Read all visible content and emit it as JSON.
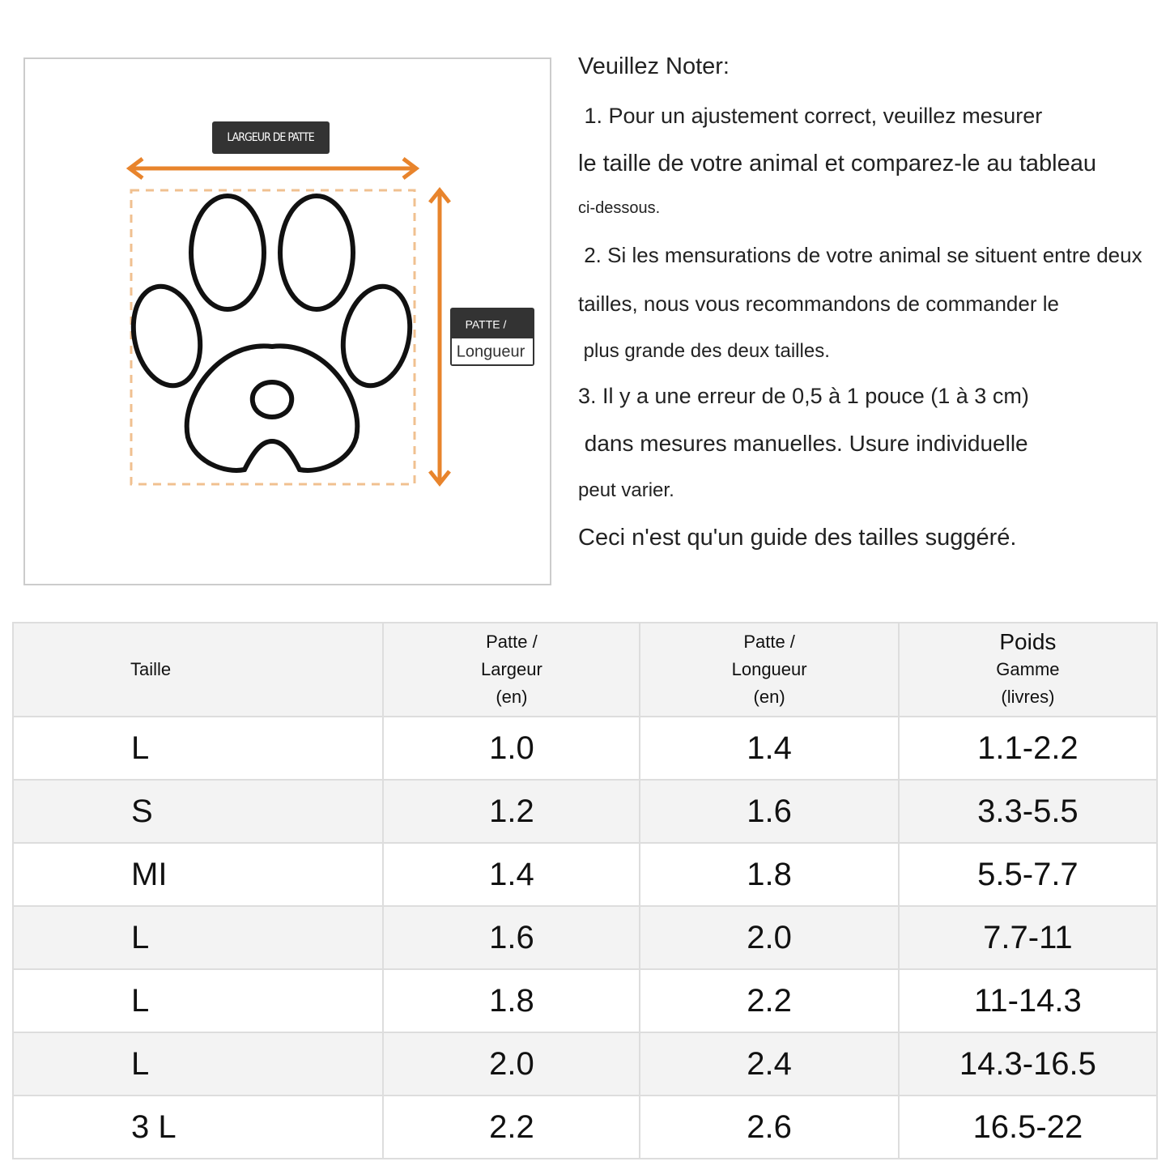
{
  "diagram": {
    "width_label": "LARGEUR DE PATTE",
    "length_label": [
      "PATTE /",
      "Longueur"
    ]
  },
  "notes": {
    "heading": "Veuillez Noter:",
    "lines": [
      " 1. Pour un ajustement correct, veuillez mesurer",
      "le taille de votre animal et comparez-le au tableau",
      "ci-dessous.",
      " 2. Si les mensurations de votre animal se situent entre deux",
      "tailles, nous vous recommandons de commander le",
      " plus grande des deux tailles.",
      "3. Il y a une erreur de 0,5 à 1 pouce (1 à 3 cm)",
      " dans mesures manuelles. Usure individuelle",
      "peut varier.",
      "Ceci n'est qu'un guide des tailles suggéré."
    ]
  },
  "table": {
    "header": [
      [
        "Taille"
      ],
      [
        "Patte /",
        "Largeur",
        "(en)"
      ],
      [
        "Patte /",
        "Longueur",
        "(en)"
      ],
      [
        "Poids",
        "Gamme",
        "(livres)"
      ]
    ],
    "rows": [
      [
        "L",
        "1.0",
        "1.4",
        "1.1-2.2"
      ],
      [
        "S",
        "1.2",
        "1.6",
        "3.3-5.5"
      ],
      [
        "MI",
        "1.4",
        "1.8",
        "5.5-7.7"
      ],
      [
        "L",
        "1.6",
        "2.0",
        "7.7-11"
      ],
      [
        "L",
        "1.8",
        "2.2",
        "11-14.3"
      ],
      [
        "L",
        "2.0",
        "2.4",
        "14.3-16.5"
      ],
      [
        "3 L",
        "2.2",
        "2.6",
        "16.5-22"
      ]
    ]
  }
}
